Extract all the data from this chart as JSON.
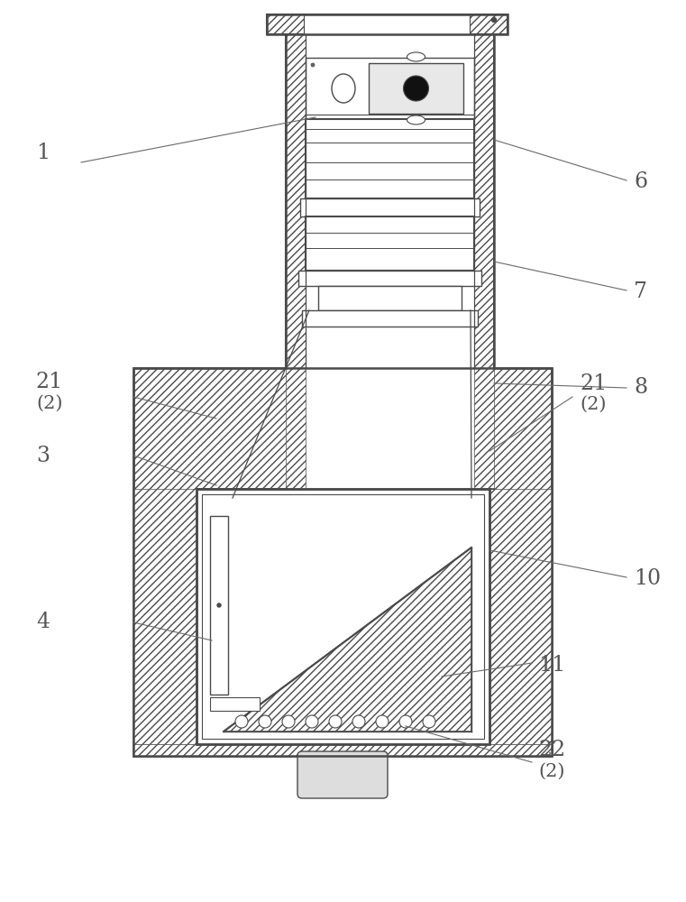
{
  "bg": "#ffffff",
  "lc": "#4a4a4a",
  "figw": 7.61,
  "figh": 10.0,
  "dpi": 100
}
